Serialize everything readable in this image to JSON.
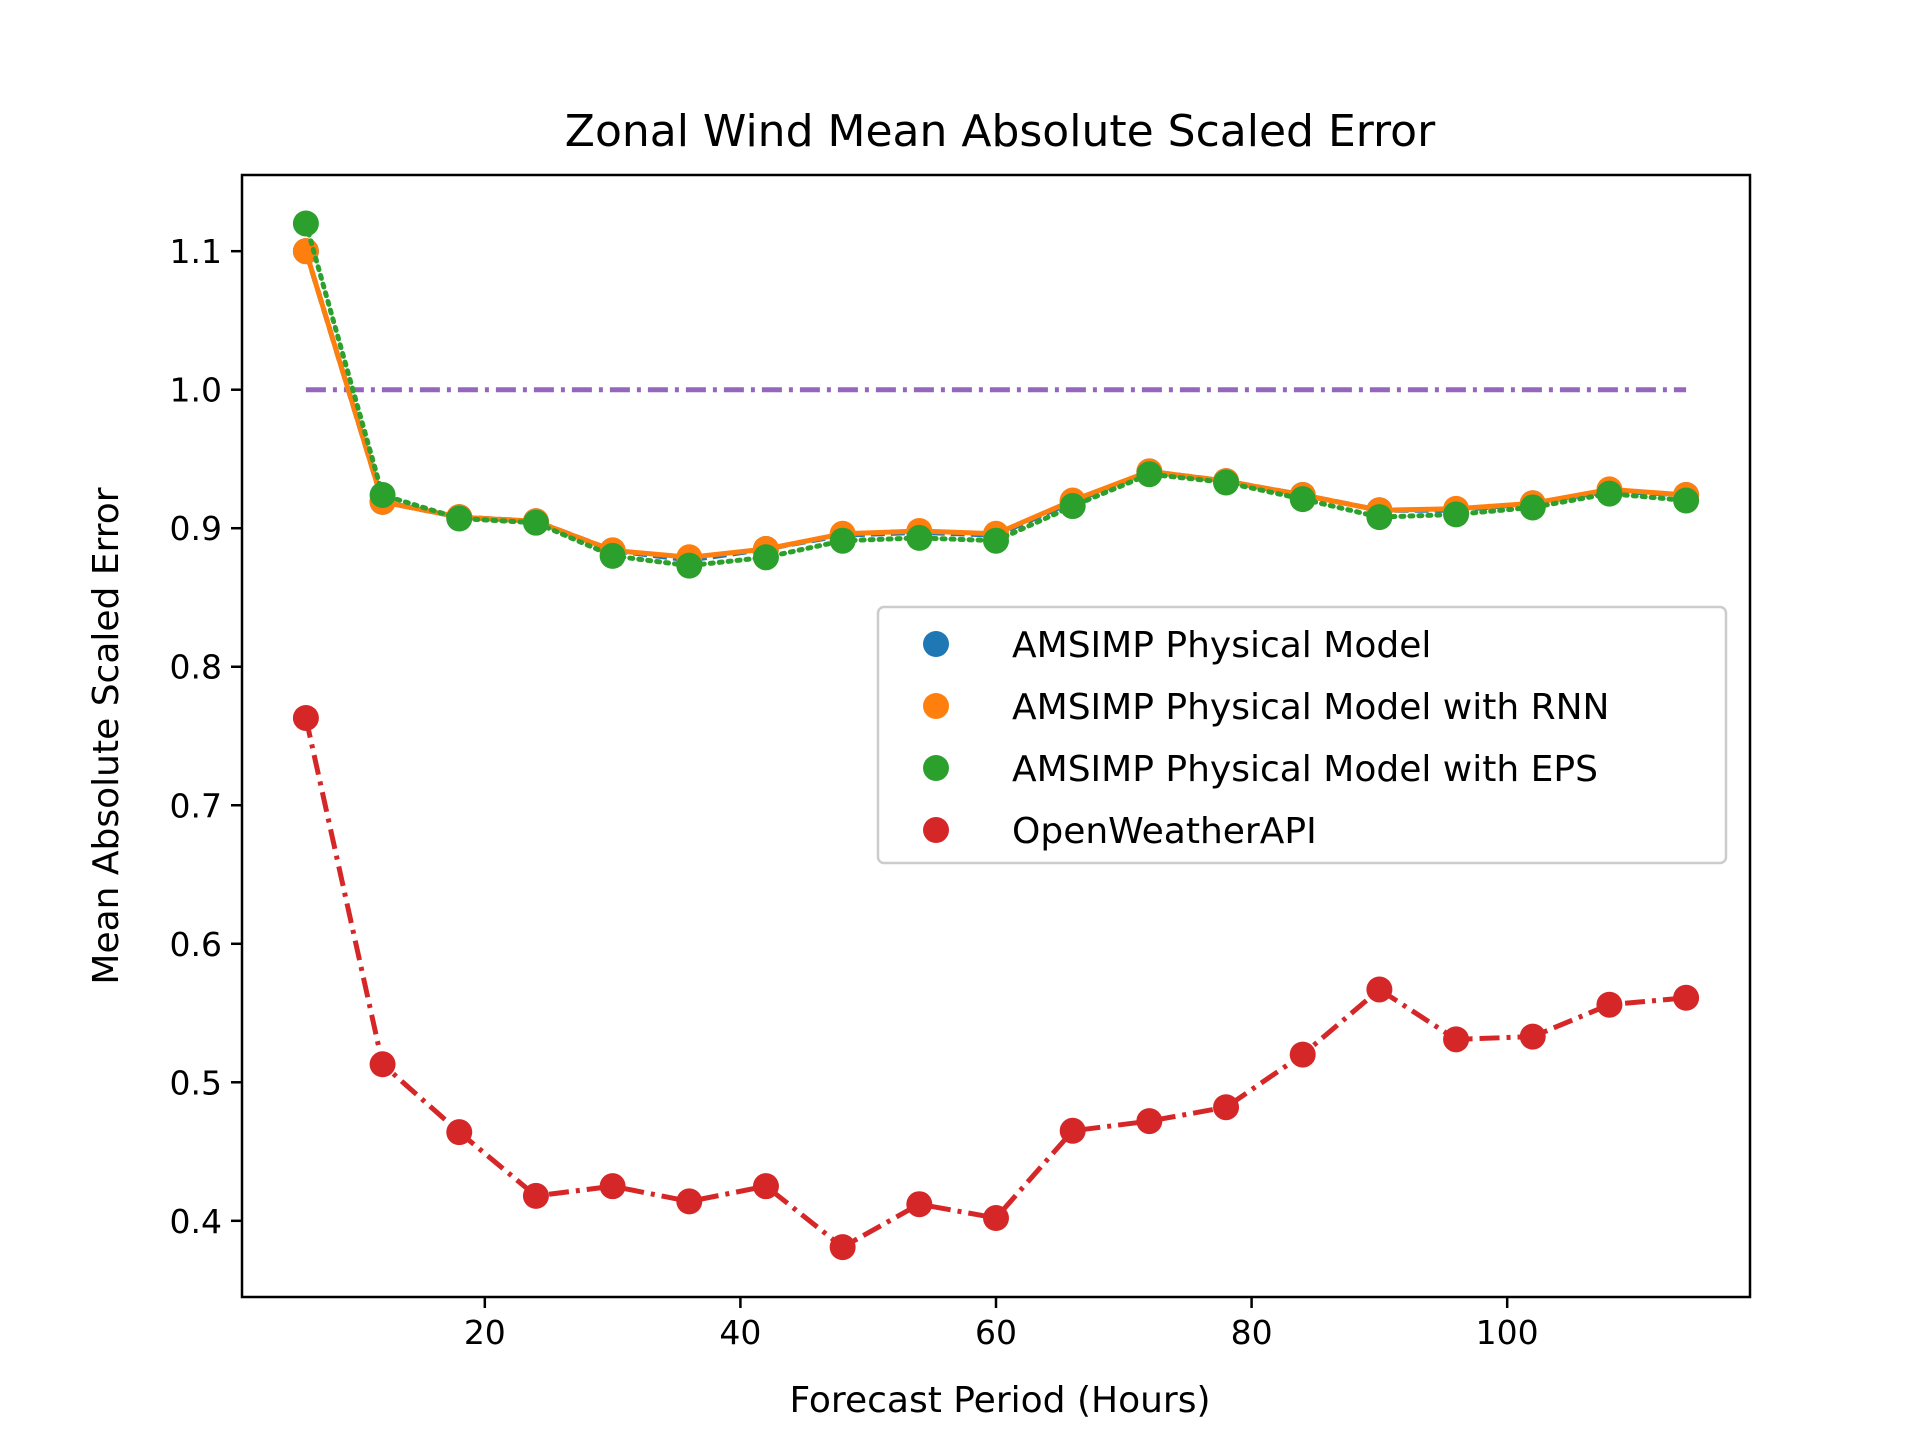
{
  "chart_data": {
    "type": "line",
    "title": "Zonal Wind Mean Absolute Scaled Error",
    "xlabel": "Forecast Period (Hours)",
    "ylabel": "Mean Absolute Scaled Error",
    "xlim": [
      1,
      119
    ],
    "ylim": [
      0.345,
      1.155
    ],
    "xticks": [
      20,
      40,
      60,
      80,
      100
    ],
    "yticks": [
      0.4,
      0.5,
      0.6,
      0.7,
      0.8,
      0.9,
      1.0,
      1.1
    ],
    "ytick_labels": [
      "0.4",
      "0.5",
      "0.6",
      "0.7",
      "0.8",
      "0.9",
      "1.0",
      "1.1"
    ],
    "grid": false,
    "legend": "center-right",
    "x": [
      6,
      12,
      18,
      24,
      30,
      36,
      42,
      48,
      54,
      60,
      66,
      72,
      78,
      84,
      90,
      96,
      102,
      108,
      114
    ],
    "series": [
      {
        "name": "AMSIMP Physical Model",
        "color": "#1f77b4",
        "line": "dashed",
        "values": [
          1.1,
          0.919,
          0.908,
          0.905,
          0.884,
          0.877,
          0.885,
          0.895,
          0.897,
          0.895,
          0.919,
          0.941,
          0.934,
          0.924,
          0.913,
          0.913,
          0.918,
          0.927,
          0.924
        ]
      },
      {
        "name": "AMSIMP Physical Model with RNN",
        "color": "#ff7f0e",
        "line": "solid",
        "values": [
          1.1,
          0.919,
          0.908,
          0.905,
          0.884,
          0.879,
          0.885,
          0.896,
          0.898,
          0.896,
          0.92,
          0.941,
          0.934,
          0.924,
          0.913,
          0.914,
          0.918,
          0.928,
          0.924
        ]
      },
      {
        "name": "AMSIMP Physical Model with EPS",
        "color": "#2ca02c",
        "line": "dotted",
        "values": [
          1.12,
          0.924,
          0.907,
          0.904,
          0.88,
          0.873,
          0.879,
          0.891,
          0.893,
          0.891,
          0.916,
          0.939,
          0.933,
          0.921,
          0.908,
          0.91,
          0.915,
          0.925,
          0.92
        ]
      },
      {
        "name": "OpenWeatherAPI",
        "color": "#d62728",
        "line": "dashdot",
        "values": [
          0.763,
          0.513,
          0.464,
          0.418,
          0.425,
          0.414,
          0.425,
          0.381,
          0.412,
          0.402,
          0.465,
          0.472,
          0.482,
          0.52,
          0.567,
          0.531,
          0.533,
          0.556,
          0.561
        ]
      }
    ],
    "reference_line": {
      "color": "#9467bd",
      "line": "dashdot",
      "x": [
        6,
        114
      ],
      "value": 1.0
    }
  }
}
